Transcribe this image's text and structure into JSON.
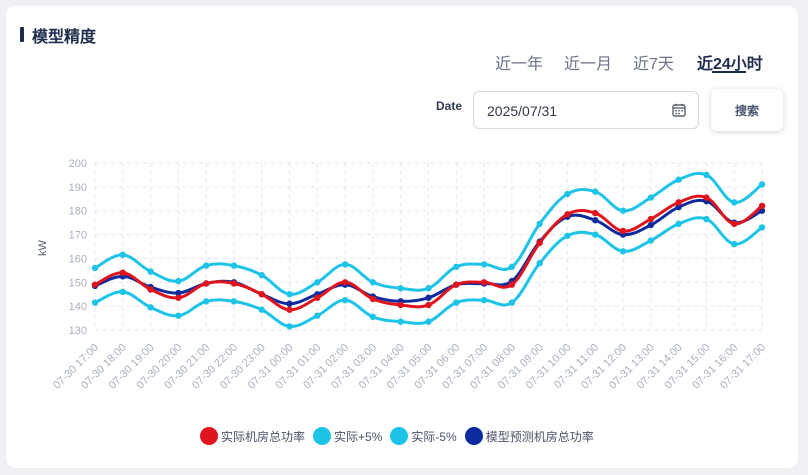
{
  "header": {
    "title": "模型精度"
  },
  "tabs": [
    {
      "label": "近一年",
      "active": false
    },
    {
      "label": "近一月",
      "active": false
    },
    {
      "label": "近7天",
      "active": false
    },
    {
      "label": "近24小时",
      "active": true
    }
  ],
  "filter": {
    "date_label": "Date",
    "date_value": "2025/07/31",
    "calendar_icon": "calendar-icon",
    "search_label": "搜索"
  },
  "chart_data": {
    "type": "line",
    "ylabel": "kW",
    "ylim": [
      130,
      200
    ],
    "yticks": [
      130,
      140,
      150,
      160,
      170,
      180,
      190,
      200
    ],
    "grid": true,
    "legend_position": "bottom",
    "categories": [
      "07-30 17:00",
      "07-30 18:00",
      "07-30 19:00",
      "07-30 20:00",
      "07-30 21:00",
      "07-30 22:00",
      "07-30 23:00",
      "07-31 00:00",
      "07-31 01:00",
      "07-31 02:00",
      "07-31 03:00",
      "07-31 04:00",
      "07-31 05:00",
      "07-31 06:00",
      "07-31 07:00",
      "07-31 08:00",
      "07-31 09:00",
      "07-31 10:00",
      "07-31 11:00",
      "07-31 12:00",
      "07-31 13:00",
      "07-31 14:00",
      "07-31 15:00",
      "07-31 16:00",
      "07-31 17:00"
    ],
    "series": [
      {
        "name": "实际机房总功率",
        "color": "#e0151c",
        "values": [
          149,
          154,
          147,
          143.5,
          149.5,
          149.5,
          145,
          138.5,
          143.5,
          150,
          143,
          140.5,
          140.5,
          149,
          150,
          149,
          166.5,
          178.5,
          179,
          171.5,
          176.5,
          183.5,
          185.5,
          174.5,
          182
        ]
      },
      {
        "name": "实际+5%",
        "color": "#1ec4e8",
        "values": [
          156,
          161.5,
          154.5,
          150.5,
          157,
          157,
          153,
          145,
          150,
          157.5,
          150,
          147.5,
          147.5,
          156.5,
          157.5,
          156.5,
          174.5,
          187,
          188,
          180,
          185.5,
          193,
          195,
          183.5,
          191
        ]
      },
      {
        "name": "实际-5%",
        "color": "#1ec4e8",
        "values": [
          141.5,
          146,
          139.5,
          136,
          142,
          142,
          138.5,
          131.5,
          136,
          142.5,
          135.5,
          133.5,
          133.5,
          141.5,
          142.5,
          141.5,
          158,
          169.5,
          170,
          163,
          167.5,
          174.5,
          176.5,
          166,
          173
        ]
      },
      {
        "name": "模型预测机房总功率",
        "color": "#0d2a9e",
        "values": [
          148.5,
          152.5,
          148,
          145.5,
          149.5,
          150,
          145,
          141,
          145,
          149,
          144,
          142,
          143.5,
          149,
          149.5,
          150.5,
          167,
          177.5,
          176,
          170,
          174,
          181.5,
          184,
          175,
          180
        ]
      }
    ]
  }
}
